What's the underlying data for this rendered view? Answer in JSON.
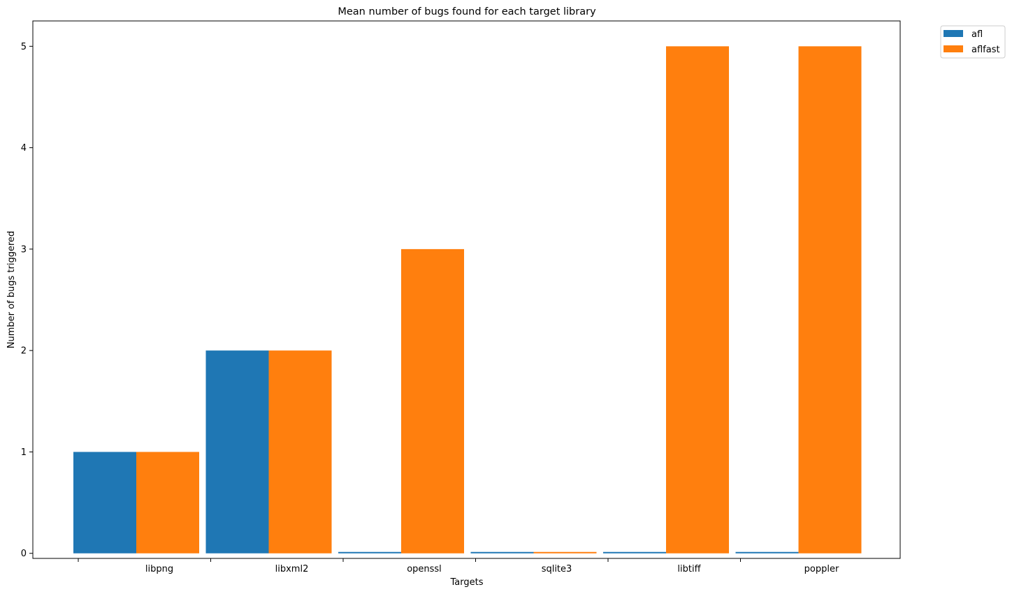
{
  "chart_data": {
    "type": "bar",
    "title": "Mean number of bugs found for each target library",
    "xlabel": "Targets",
    "ylabel": "Number of bugs triggered",
    "categories": [
      "libpng",
      "libxml2",
      "openssl",
      "sqlite3",
      "libtiff",
      "poppler"
    ],
    "series": [
      {
        "name": "afl",
        "color": "#1f77b4",
        "values": [
          1,
          2,
          0,
          0,
          0,
          0
        ]
      },
      {
        "name": "aflfast",
        "color": "#ff7f0e",
        "values": [
          1,
          2,
          3,
          0,
          5,
          5
        ]
      }
    ],
    "yticks": [
      0,
      1,
      2,
      3,
      4,
      5
    ],
    "ylim": [
      -0.05,
      5.25
    ],
    "grid": false,
    "legend": "outside-top-right"
  }
}
